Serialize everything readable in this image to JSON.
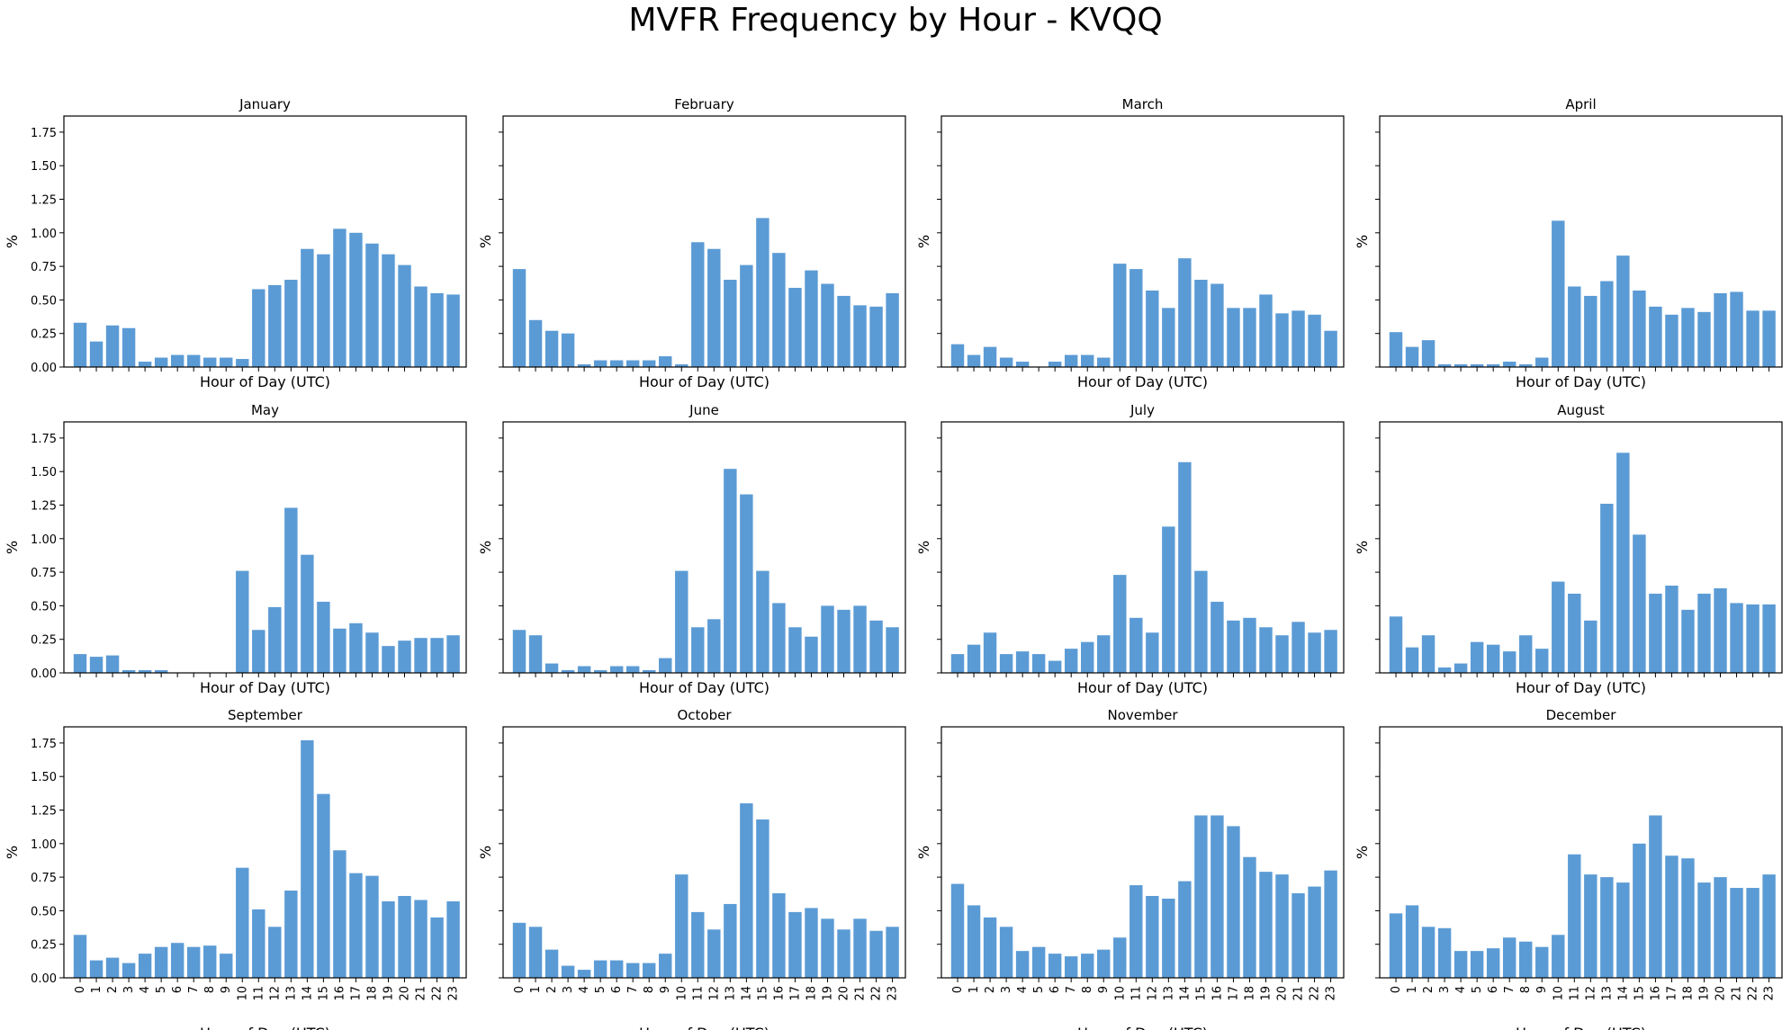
{
  "title": "MVFR Frequency by Hour - KVQQ",
  "colors": {
    "bar": "#5b9bd5",
    "axis": "#000000"
  },
  "chart_data": [
    {
      "type": "bar",
      "title": "January",
      "xlabel": "Hour of Day (UTC)",
      "ylabel": "%",
      "ylim": [
        0,
        1.87
      ],
      "categories": [
        "0",
        "1",
        "2",
        "3",
        "4",
        "5",
        "6",
        "7",
        "8",
        "9",
        "10",
        "11",
        "12",
        "13",
        "14",
        "15",
        "16",
        "17",
        "18",
        "19",
        "20",
        "21",
        "22",
        "23"
      ],
      "values": [
        0.33,
        0.19,
        0.31,
        0.29,
        0.04,
        0.07,
        0.09,
        0.09,
        0.07,
        0.07,
        0.06,
        0.58,
        0.61,
        0.65,
        0.88,
        0.84,
        1.03,
        1.0,
        0.92,
        0.84,
        0.76,
        0.6,
        0.55,
        0.54
      ]
    },
    {
      "type": "bar",
      "title": "February",
      "xlabel": "Hour of Day (UTC)",
      "ylabel": "%",
      "ylim": [
        0,
        1.87
      ],
      "categories": [
        "0",
        "1",
        "2",
        "3",
        "4",
        "5",
        "6",
        "7",
        "8",
        "9",
        "10",
        "11",
        "12",
        "13",
        "14",
        "15",
        "16",
        "17",
        "18",
        "19",
        "20",
        "21",
        "22",
        "23"
      ],
      "values": [
        0.73,
        0.35,
        0.27,
        0.25,
        0.02,
        0.05,
        0.05,
        0.05,
        0.05,
        0.08,
        0.02,
        0.93,
        0.88,
        0.65,
        0.76,
        1.11,
        0.85,
        0.59,
        0.72,
        0.62,
        0.53,
        0.46,
        0.45,
        0.55
      ]
    },
    {
      "type": "bar",
      "title": "March",
      "xlabel": "Hour of Day (UTC)",
      "ylabel": "%",
      "ylim": [
        0,
        1.87
      ],
      "categories": [
        "0",
        "1",
        "2",
        "3",
        "4",
        "5",
        "6",
        "7",
        "8",
        "9",
        "10",
        "11",
        "12",
        "13",
        "14",
        "15",
        "16",
        "17",
        "18",
        "19",
        "20",
        "21",
        "22",
        "23"
      ],
      "values": [
        0.17,
        0.09,
        0.15,
        0.07,
        0.04,
        0.0,
        0.04,
        0.09,
        0.09,
        0.07,
        0.77,
        0.73,
        0.57,
        0.44,
        0.81,
        0.65,
        0.62,
        0.44,
        0.44,
        0.54,
        0.4,
        0.42,
        0.39,
        0.27
      ]
    },
    {
      "type": "bar",
      "title": "April",
      "xlabel": "Hour of Day (UTC)",
      "ylabel": "%",
      "ylim": [
        0,
        1.87
      ],
      "categories": [
        "0",
        "1",
        "2",
        "3",
        "4",
        "5",
        "6",
        "7",
        "8",
        "9",
        "10",
        "11",
        "12",
        "13",
        "14",
        "15",
        "16",
        "17",
        "18",
        "19",
        "20",
        "21",
        "22",
        "23"
      ],
      "values": [
        0.26,
        0.15,
        0.2,
        0.02,
        0.02,
        0.02,
        0.02,
        0.04,
        0.02,
        0.07,
        1.09,
        0.6,
        0.53,
        0.64,
        0.83,
        0.57,
        0.45,
        0.39,
        0.44,
        0.41,
        0.55,
        0.56,
        0.42,
        0.42
      ]
    },
    {
      "type": "bar",
      "title": "May",
      "xlabel": "Hour of Day (UTC)",
      "ylabel": "%",
      "ylim": [
        0,
        1.87
      ],
      "categories": [
        "0",
        "1",
        "2",
        "3",
        "4",
        "5",
        "6",
        "7",
        "8",
        "9",
        "10",
        "11",
        "12",
        "13",
        "14",
        "15",
        "16",
        "17",
        "18",
        "19",
        "20",
        "21",
        "22",
        "23"
      ],
      "values": [
        0.14,
        0.12,
        0.13,
        0.02,
        0.02,
        0.02,
        0.0,
        0.0,
        0.0,
        0.0,
        0.76,
        0.32,
        0.49,
        1.23,
        0.88,
        0.53,
        0.33,
        0.37,
        0.3,
        0.2,
        0.24,
        0.26,
        0.26,
        0.28
      ]
    },
    {
      "type": "bar",
      "title": "June",
      "xlabel": "Hour of Day (UTC)",
      "ylabel": "%",
      "ylim": [
        0,
        1.87
      ],
      "categories": [
        "0",
        "1",
        "2",
        "3",
        "4",
        "5",
        "6",
        "7",
        "8",
        "9",
        "10",
        "11",
        "12",
        "13",
        "14",
        "15",
        "16",
        "17",
        "18",
        "19",
        "20",
        "21",
        "22",
        "23"
      ],
      "values": [
        0.32,
        0.28,
        0.07,
        0.02,
        0.05,
        0.02,
        0.05,
        0.05,
        0.02,
        0.11,
        0.76,
        0.34,
        0.4,
        1.52,
        1.33,
        0.76,
        0.52,
        0.34,
        0.27,
        0.5,
        0.47,
        0.5,
        0.39,
        0.34
      ]
    },
    {
      "type": "bar",
      "title": "July",
      "xlabel": "Hour of Day (UTC)",
      "ylabel": "%",
      "ylim": [
        0,
        1.87
      ],
      "categories": [
        "0",
        "1",
        "2",
        "3",
        "4",
        "5",
        "6",
        "7",
        "8",
        "9",
        "10",
        "11",
        "12",
        "13",
        "14",
        "15",
        "16",
        "17",
        "18",
        "19",
        "20",
        "21",
        "22",
        "23"
      ],
      "values": [
        0.14,
        0.21,
        0.3,
        0.14,
        0.16,
        0.14,
        0.09,
        0.18,
        0.23,
        0.28,
        0.73,
        0.41,
        0.3,
        1.09,
        1.57,
        0.76,
        0.53,
        0.39,
        0.41,
        0.34,
        0.28,
        0.38,
        0.3,
        0.32
      ]
    },
    {
      "type": "bar",
      "title": "August",
      "xlabel": "Hour of Day (UTC)",
      "ylabel": "%",
      "ylim": [
        0,
        1.87
      ],
      "categories": [
        "0",
        "1",
        "2",
        "3",
        "4",
        "5",
        "6",
        "7",
        "8",
        "9",
        "10",
        "11",
        "12",
        "13",
        "14",
        "15",
        "16",
        "17",
        "18",
        "19",
        "20",
        "21",
        "22",
        "23"
      ],
      "values": [
        0.42,
        0.19,
        0.28,
        0.04,
        0.07,
        0.23,
        0.21,
        0.16,
        0.28,
        0.18,
        0.68,
        0.59,
        0.39,
        1.26,
        1.64,
        1.03,
        0.59,
        0.65,
        0.47,
        0.59,
        0.63,
        0.52,
        0.51,
        0.51
      ]
    },
    {
      "type": "bar",
      "title": "September",
      "xlabel": "Hour of Day (UTC)",
      "ylabel": "%",
      "ylim": [
        0,
        1.87
      ],
      "categories": [
        "0",
        "1",
        "2",
        "3",
        "4",
        "5",
        "6",
        "7",
        "8",
        "9",
        "10",
        "11",
        "12",
        "13",
        "14",
        "15",
        "16",
        "17",
        "18",
        "19",
        "20",
        "21",
        "22",
        "23"
      ],
      "values": [
        0.32,
        0.13,
        0.15,
        0.11,
        0.18,
        0.23,
        0.26,
        0.23,
        0.24,
        0.18,
        0.82,
        0.51,
        0.38,
        0.65,
        1.77,
        1.37,
        0.95,
        0.78,
        0.76,
        0.57,
        0.61,
        0.58,
        0.45,
        0.57
      ]
    },
    {
      "type": "bar",
      "title": "October",
      "xlabel": "Hour of Day (UTC)",
      "ylabel": "%",
      "ylim": [
        0,
        1.87
      ],
      "categories": [
        "0",
        "1",
        "2",
        "3",
        "4",
        "5",
        "6",
        "7",
        "8",
        "9",
        "10",
        "11",
        "12",
        "13",
        "14",
        "15",
        "16",
        "17",
        "18",
        "19",
        "20",
        "21",
        "22",
        "23"
      ],
      "values": [
        0.41,
        0.38,
        0.21,
        0.09,
        0.06,
        0.13,
        0.13,
        0.11,
        0.11,
        0.18,
        0.77,
        0.49,
        0.36,
        0.55,
        1.3,
        1.18,
        0.63,
        0.49,
        0.52,
        0.44,
        0.36,
        0.44,
        0.35,
        0.38
      ]
    },
    {
      "type": "bar",
      "title": "November",
      "xlabel": "Hour of Day (UTC)",
      "ylabel": "%",
      "ylim": [
        0,
        1.87
      ],
      "categories": [
        "0",
        "1",
        "2",
        "3",
        "4",
        "5",
        "6",
        "7",
        "8",
        "9",
        "10",
        "11",
        "12",
        "13",
        "14",
        "15",
        "16",
        "17",
        "18",
        "19",
        "20",
        "21",
        "22",
        "23"
      ],
      "values": [
        0.7,
        0.54,
        0.45,
        0.38,
        0.2,
        0.23,
        0.18,
        0.16,
        0.18,
        0.21,
        0.3,
        0.69,
        0.61,
        0.59,
        0.72,
        1.21,
        1.21,
        1.13,
        0.9,
        0.79,
        0.77,
        0.63,
        0.68,
        0.8
      ]
    },
    {
      "type": "bar",
      "title": "December",
      "xlabel": "Hour of Day (UTC)",
      "ylabel": "%",
      "ylim": [
        0,
        1.87
      ],
      "categories": [
        "0",
        "1",
        "2",
        "3",
        "4",
        "5",
        "6",
        "7",
        "8",
        "9",
        "10",
        "11",
        "12",
        "13",
        "14",
        "15",
        "16",
        "17",
        "18",
        "19",
        "20",
        "21",
        "22",
        "23"
      ],
      "values": [
        0.48,
        0.54,
        0.38,
        0.37,
        0.2,
        0.2,
        0.22,
        0.3,
        0.27,
        0.23,
        0.32,
        0.92,
        0.77,
        0.75,
        0.71,
        1.0,
        1.21,
        0.91,
        0.89,
        0.71,
        0.75,
        0.67,
        0.67,
        0.77
      ]
    }
  ],
  "yticks": [
    "0.00",
    "0.25",
    "0.50",
    "0.75",
    "1.00",
    "1.25",
    "1.50",
    "1.75"
  ]
}
